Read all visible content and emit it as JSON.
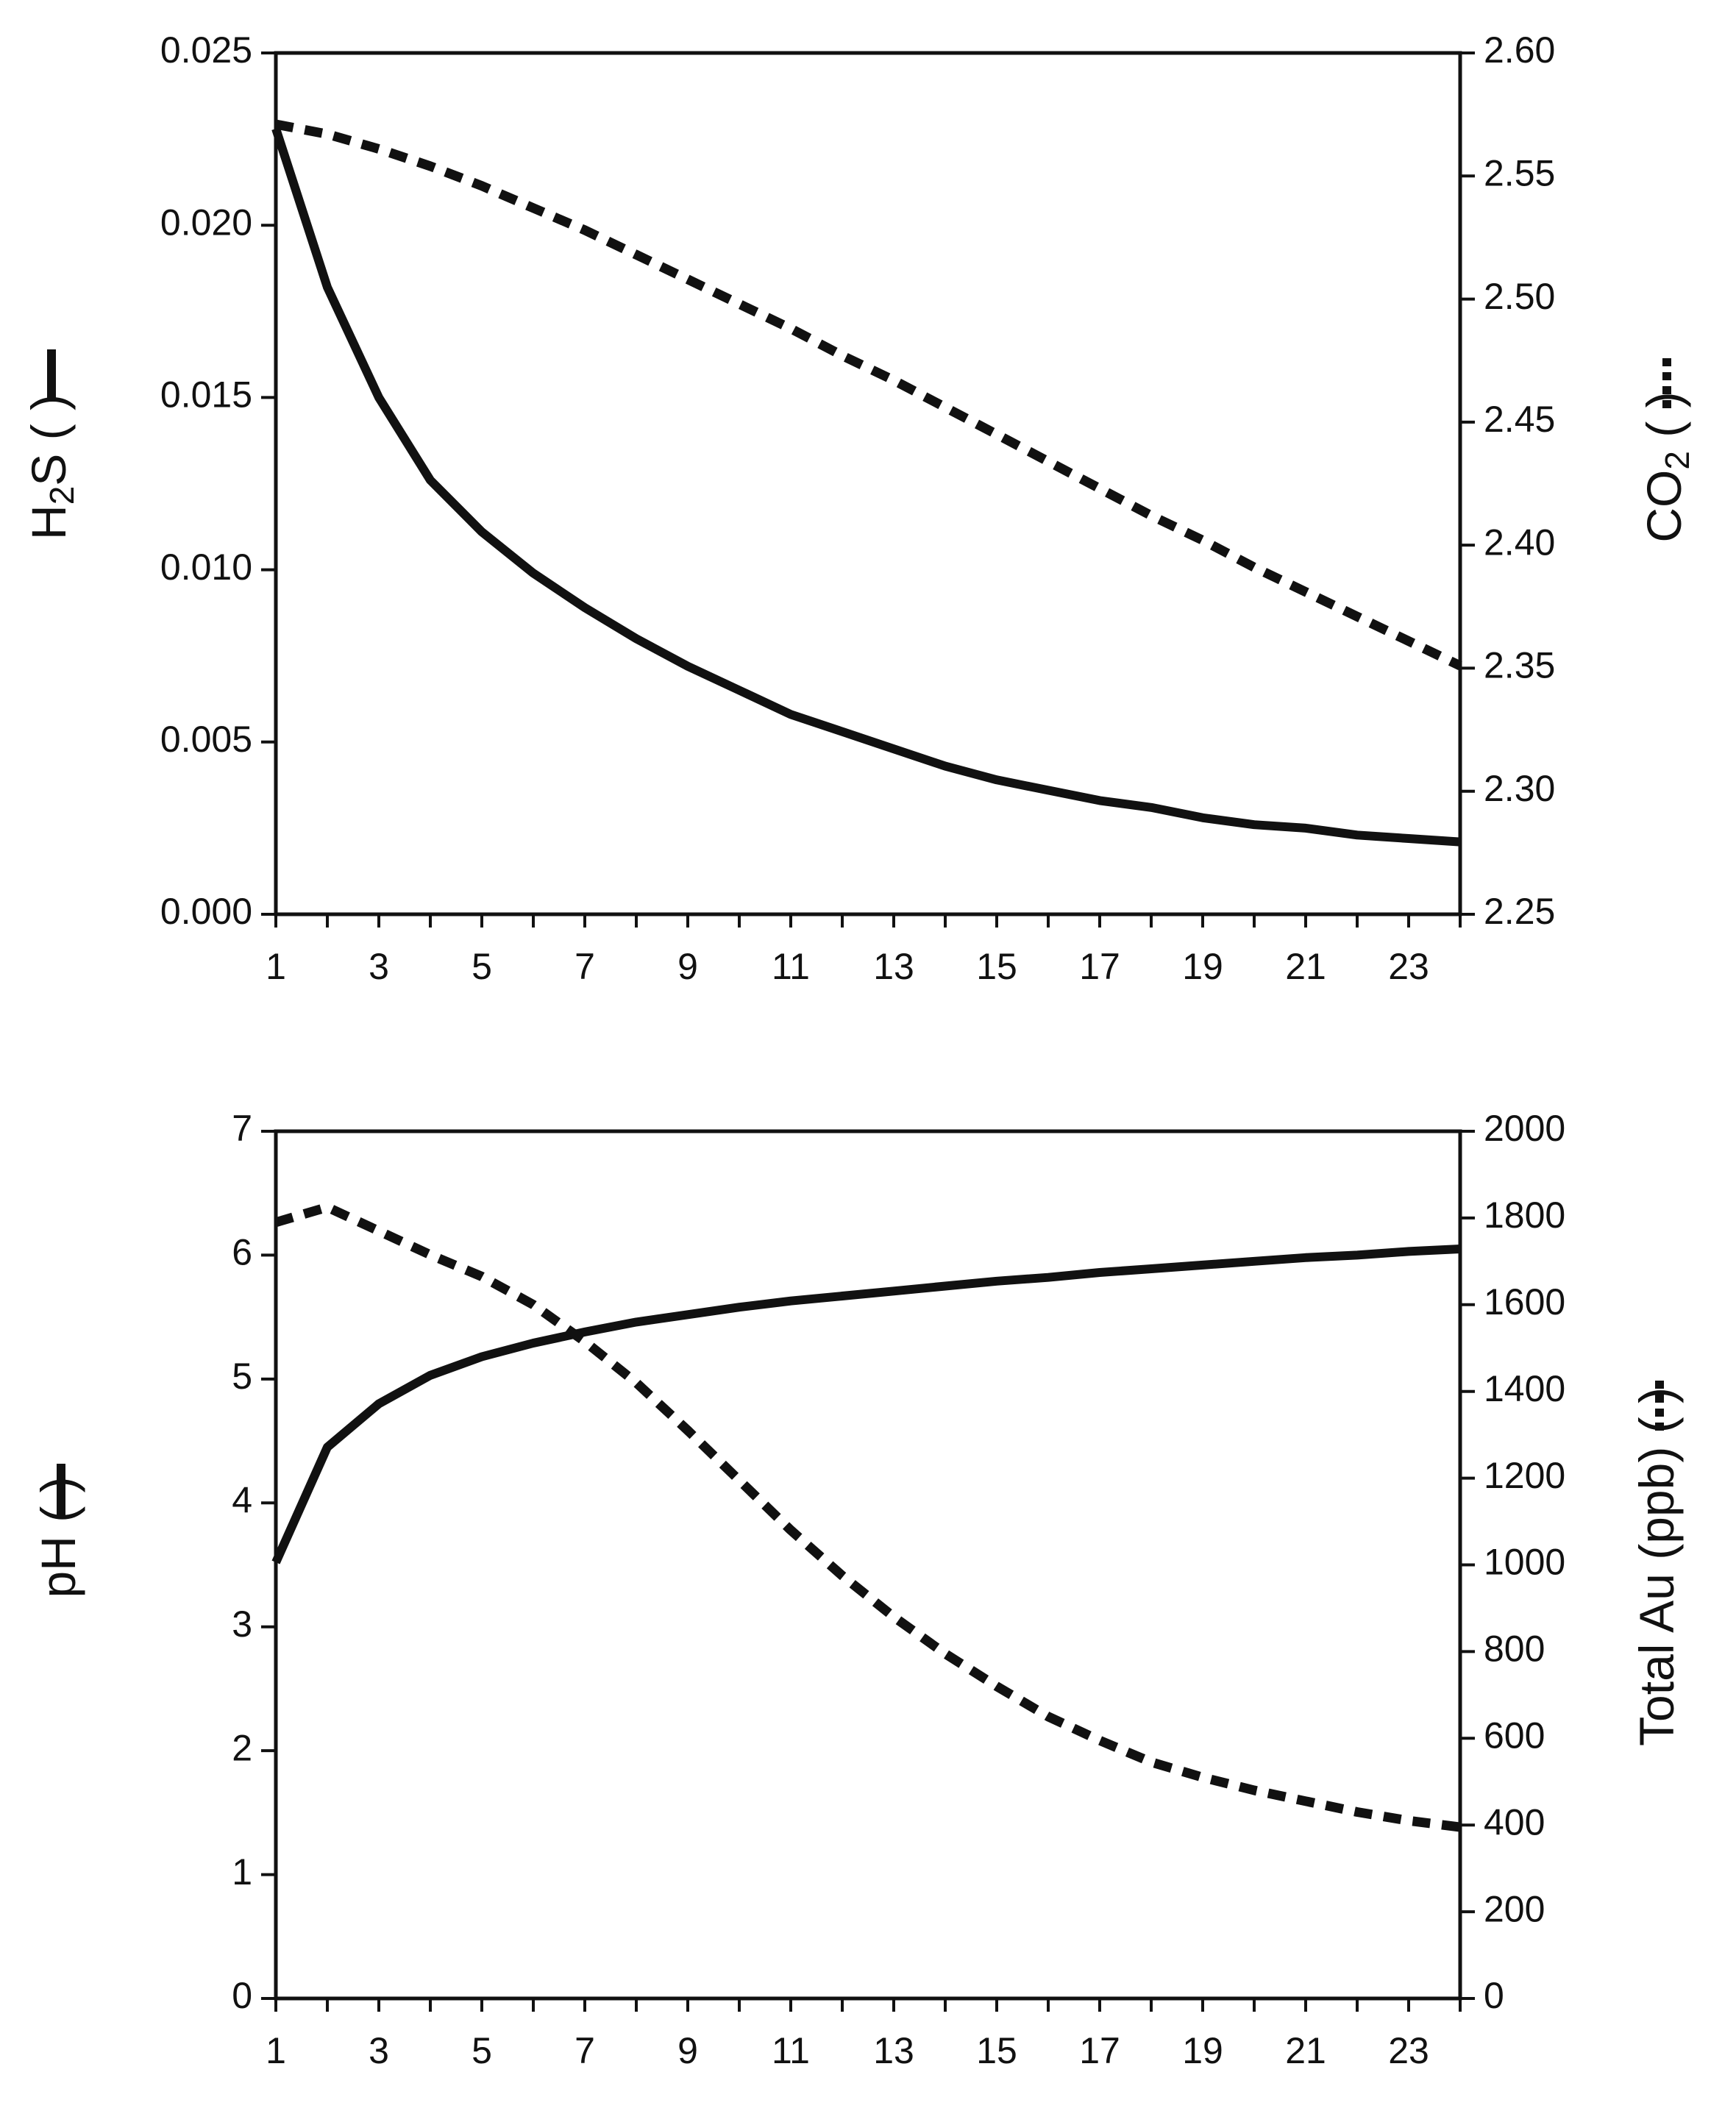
{
  "chart_data": [
    {
      "type": "line",
      "xlabel": "",
      "x": [
        1,
        2,
        3,
        4,
        5,
        6,
        7,
        8,
        9,
        10,
        11,
        12,
        13,
        14,
        15,
        16,
        17,
        18,
        19,
        20,
        21,
        22,
        23,
        24
      ],
      "x_ticks": [
        "1",
        "3",
        "5",
        "7",
        "9",
        "11",
        "13",
        "15",
        "17",
        "19",
        "21",
        "23"
      ],
      "left_axis": {
        "label_prefix": "H",
        "label_sub": "2",
        "label_suffix": "S (",
        "label_end": ")",
        "ylim": [
          0.0,
          0.025
        ],
        "ticks": [
          "0.000",
          "0.005",
          "0.010",
          "0.015",
          "0.020",
          "0.025"
        ]
      },
      "right_axis": {
        "label_prefix": "CO",
        "label_sub": "2",
        "label_suffix": " (",
        "label_end": ")",
        "ylim": [
          2.25,
          2.6
        ],
        "ticks": [
          "2.25",
          "2.30",
          "2.35",
          "2.40",
          "2.45",
          "2.50",
          "2.55",
          "2.60"
        ]
      },
      "series": [
        {
          "name": "H2S",
          "axis": "left",
          "style": "solid",
          "values": [
            0.0228,
            0.0182,
            0.015,
            0.0126,
            0.0111,
            0.0099,
            0.0089,
            0.008,
            0.0072,
            0.0065,
            0.0058,
            0.0053,
            0.0048,
            0.0043,
            0.0039,
            0.0036,
            0.0033,
            0.0031,
            0.0028,
            0.0026,
            0.0025,
            0.0023,
            0.0022,
            0.0021
          ]
        },
        {
          "name": "CO2",
          "axis": "right",
          "style": "dotted",
          "values": [
            2.571,
            2.567,
            2.561,
            2.554,
            2.546,
            2.537,
            2.528,
            2.518,
            2.508,
            2.498,
            2.488,
            2.477,
            2.467,
            2.456,
            2.445,
            2.434,
            2.423,
            2.412,
            2.402,
            2.391,
            2.381,
            2.371,
            2.361,
            2.351
          ]
        }
      ]
    },
    {
      "type": "line",
      "xlabel": "",
      "x": [
        1,
        2,
        3,
        4,
        5,
        6,
        7,
        8,
        9,
        10,
        11,
        12,
        13,
        14,
        15,
        16,
        17,
        18,
        19,
        20,
        21,
        22,
        23,
        24
      ],
      "x_ticks": [
        "1",
        "3",
        "5",
        "7",
        "9",
        "11",
        "13",
        "15",
        "17",
        "19",
        "21",
        "23"
      ],
      "left_axis": {
        "label_prefix": "pH (",
        "label_sub": "",
        "label_suffix": "",
        "label_end": ")",
        "ylim": [
          0,
          7
        ],
        "ticks": [
          "0",
          "1",
          "2",
          "3",
          "4",
          "5",
          "6",
          "7"
        ]
      },
      "right_axis": {
        "label_prefix": "Total Au (ppb) (",
        "label_sub": "",
        "label_suffix": "",
        "label_end": ")",
        "ylim": [
          0,
          2000
        ],
        "ticks": [
          "0",
          "200",
          "400",
          "600",
          "800",
          "1000",
          "1200",
          "1400",
          "1600",
          "1800",
          "2000"
        ]
      },
      "series": [
        {
          "name": "pH",
          "axis": "left",
          "style": "solid",
          "values": [
            3.52,
            4.45,
            4.8,
            5.03,
            5.18,
            5.29,
            5.38,
            5.46,
            5.52,
            5.58,
            5.63,
            5.67,
            5.71,
            5.75,
            5.79,
            5.82,
            5.86,
            5.89,
            5.92,
            5.95,
            5.98,
            6.0,
            6.03,
            6.05
          ]
        },
        {
          "name": "Total Au",
          "axis": "right",
          "style": "dotted",
          "values": [
            1790,
            1825,
            1770,
            1715,
            1665,
            1600,
            1515,
            1420,
            1310,
            1195,
            1080,
            975,
            880,
            795,
            720,
            650,
            595,
            545,
            510,
            480,
            455,
            430,
            410,
            395
          ]
        }
      ]
    }
  ]
}
